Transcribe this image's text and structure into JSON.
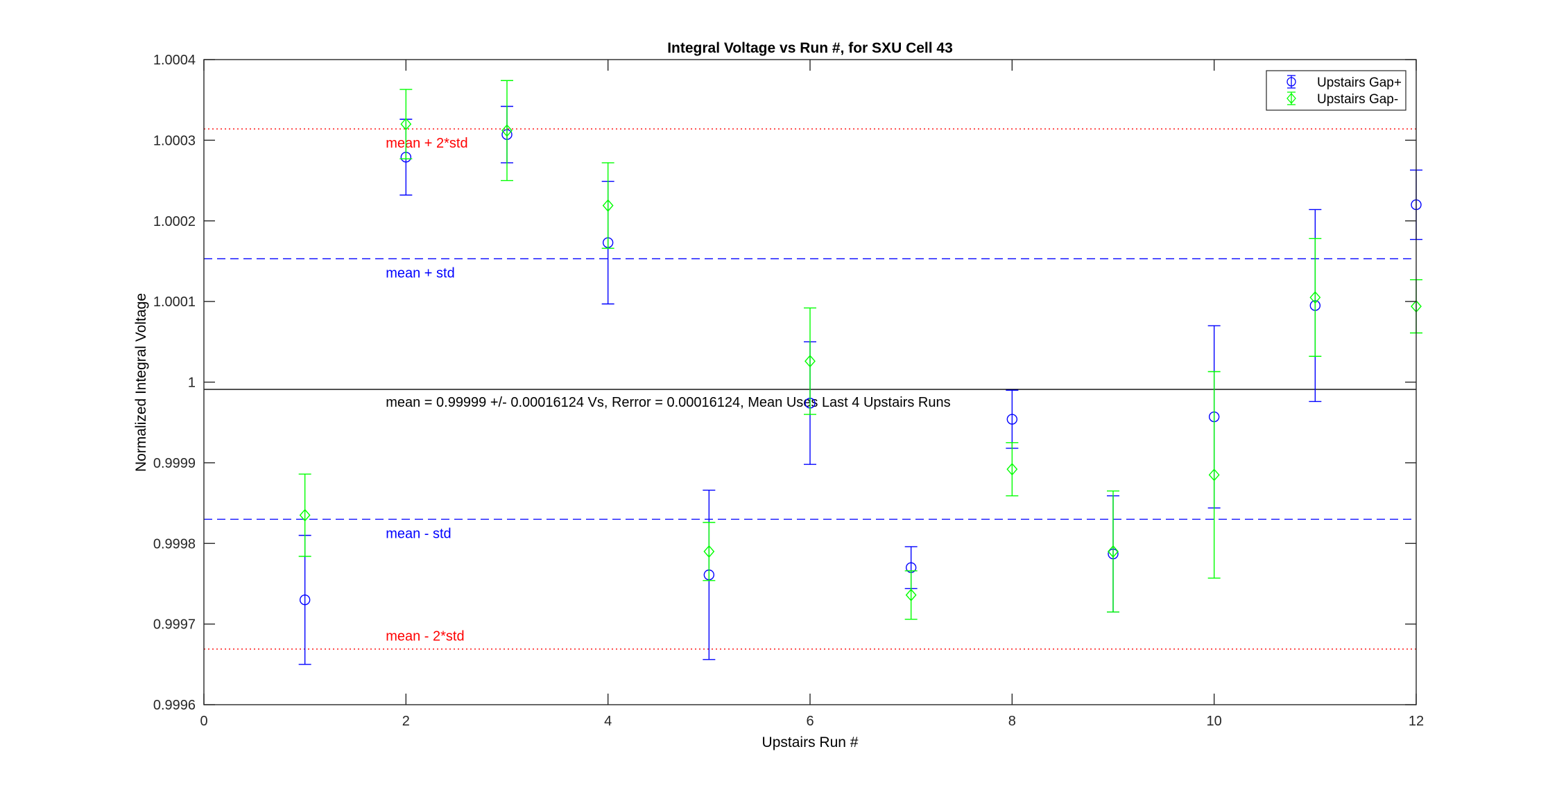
{
  "chart_data": {
    "type": "scatter",
    "title": "Integral Voltage vs Run #, for SXU Cell 43",
    "xlabel": "Upstairs Run #",
    "ylabel": "Normalized Integral Voltage",
    "xlim": [
      0,
      12
    ],
    "ylim": [
      0.9996,
      1.0004
    ],
    "xticks": [
      0,
      2,
      4,
      6,
      8,
      10,
      12
    ],
    "yticks": [
      0.9996,
      0.9997,
      0.9998,
      0.9999,
      1,
      1.0001,
      1.0002,
      1.0003,
      1.0004
    ],
    "ytick_labels": [
      "0.9996",
      "0.9997",
      "0.9998",
      "0.9999",
      "1",
      "1.0001",
      "1.0002",
      "1.0003",
      "1.0004"
    ],
    "grid": false,
    "legend_position": "top-right",
    "series": [
      {
        "name": "Upstairs Gap+",
        "color": "#0000ff",
        "marker": "circle",
        "x": [
          1,
          2,
          3,
          4,
          5,
          6,
          7,
          8,
          9,
          10,
          11,
          12
        ],
        "y": [
          0.99973,
          1.000279,
          1.000307,
          1.000173,
          0.999761,
          0.999974,
          0.99977,
          0.999954,
          0.999787,
          0.999957,
          1.000095,
          1.00022
        ],
        "err": [
          8e-05,
          4.7e-05,
          3.5e-05,
          7.6e-05,
          0.000105,
          7.6e-05,
          2.6e-05,
          3.6e-05,
          7.2e-05,
          0.000113,
          0.000119,
          4.3e-05
        ]
      },
      {
        "name": "Upstairs Gap-",
        "color": "#00ff00",
        "marker": "diamond",
        "x": [
          1,
          2,
          3,
          4,
          5,
          6,
          7,
          8,
          9,
          10,
          11,
          12
        ],
        "y": [
          0.999835,
          1.00032,
          1.000312,
          1.000219,
          0.99979,
          1.000026,
          0.999736,
          0.999892,
          0.99979,
          0.999885,
          1.000105,
          1.000094
        ],
        "err": [
          5.1e-05,
          4.3e-05,
          6.2e-05,
          5.3e-05,
          3.6e-05,
          6.6e-05,
          3e-05,
          3.3e-05,
          7.5e-05,
          0.000128,
          7.3e-05,
          3.3e-05
        ]
      }
    ],
    "reference_lines": [
      {
        "label": "mean + 2*std",
        "value": 1.000314,
        "color": "#ff0000",
        "style": "dotted"
      },
      {
        "label": "mean + std",
        "value": 1.000153,
        "color": "#0000ff",
        "style": "dashed"
      },
      {
        "label": "mean = 0.99999 +/- 0.00016124 Vs, Rerror = 0.00016124, Mean Uses Last 4 Upstairs Runs",
        "value": 0.999991,
        "color": "#000000",
        "style": "solid"
      },
      {
        "label": "mean - std",
        "value": 0.99983,
        "color": "#0000ff",
        "style": "dashed"
      },
      {
        "label": "mean - 2*std",
        "value": 0.999669,
        "color": "#ff0000",
        "style": "dotted"
      }
    ]
  }
}
